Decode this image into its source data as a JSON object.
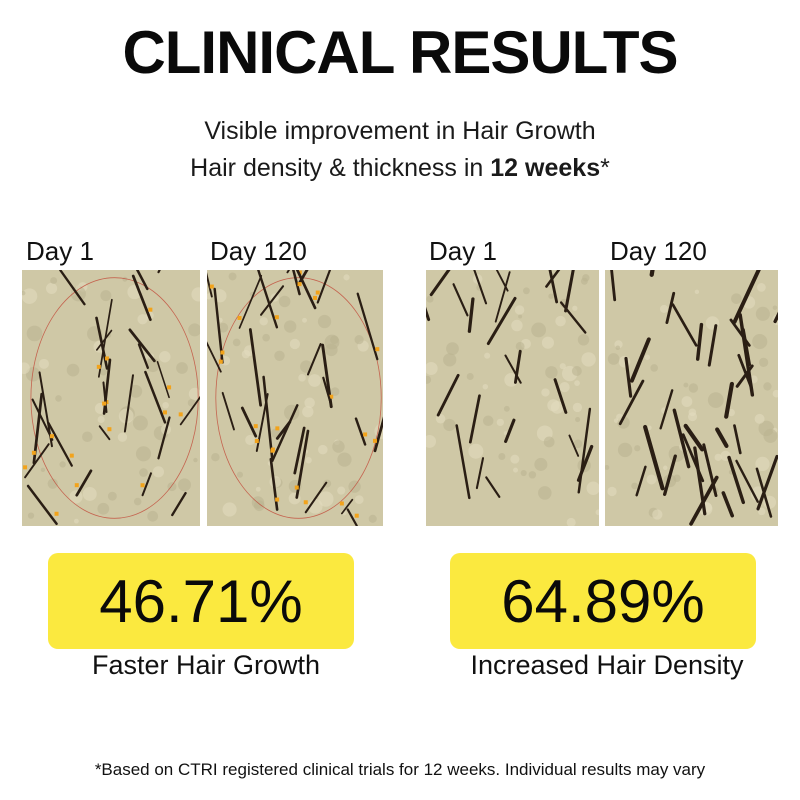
{
  "title": "CLINICAL RESULTS",
  "subtitle_line1": "Visible improvement in Hair Growth",
  "subtitle_line2_prefix": "Hair density & thickness in ",
  "subtitle_line2_bold": "12 weeks",
  "subtitle_line2_suffix": "*",
  "left_panel": {
    "before_label": "Day 1",
    "after_label": "Day 120",
    "stat_value": "46.71%",
    "stat_caption": "Faster Hair Growth",
    "has_markers": true
  },
  "right_panel": {
    "before_label": "Day 1",
    "after_label": "Day 120",
    "stat_value": "64.89%",
    "stat_caption": "Increased Hair Density",
    "has_markers": false
  },
  "footnote": "*Based on CTRI registered clinical trials for 12 weeks. Individual results may vary",
  "colors": {
    "highlight_yellow": "#fbe93f",
    "marker_orange": "#f2a31b",
    "scalp": "#cfc8a6",
    "hair": "#2a1e14"
  }
}
